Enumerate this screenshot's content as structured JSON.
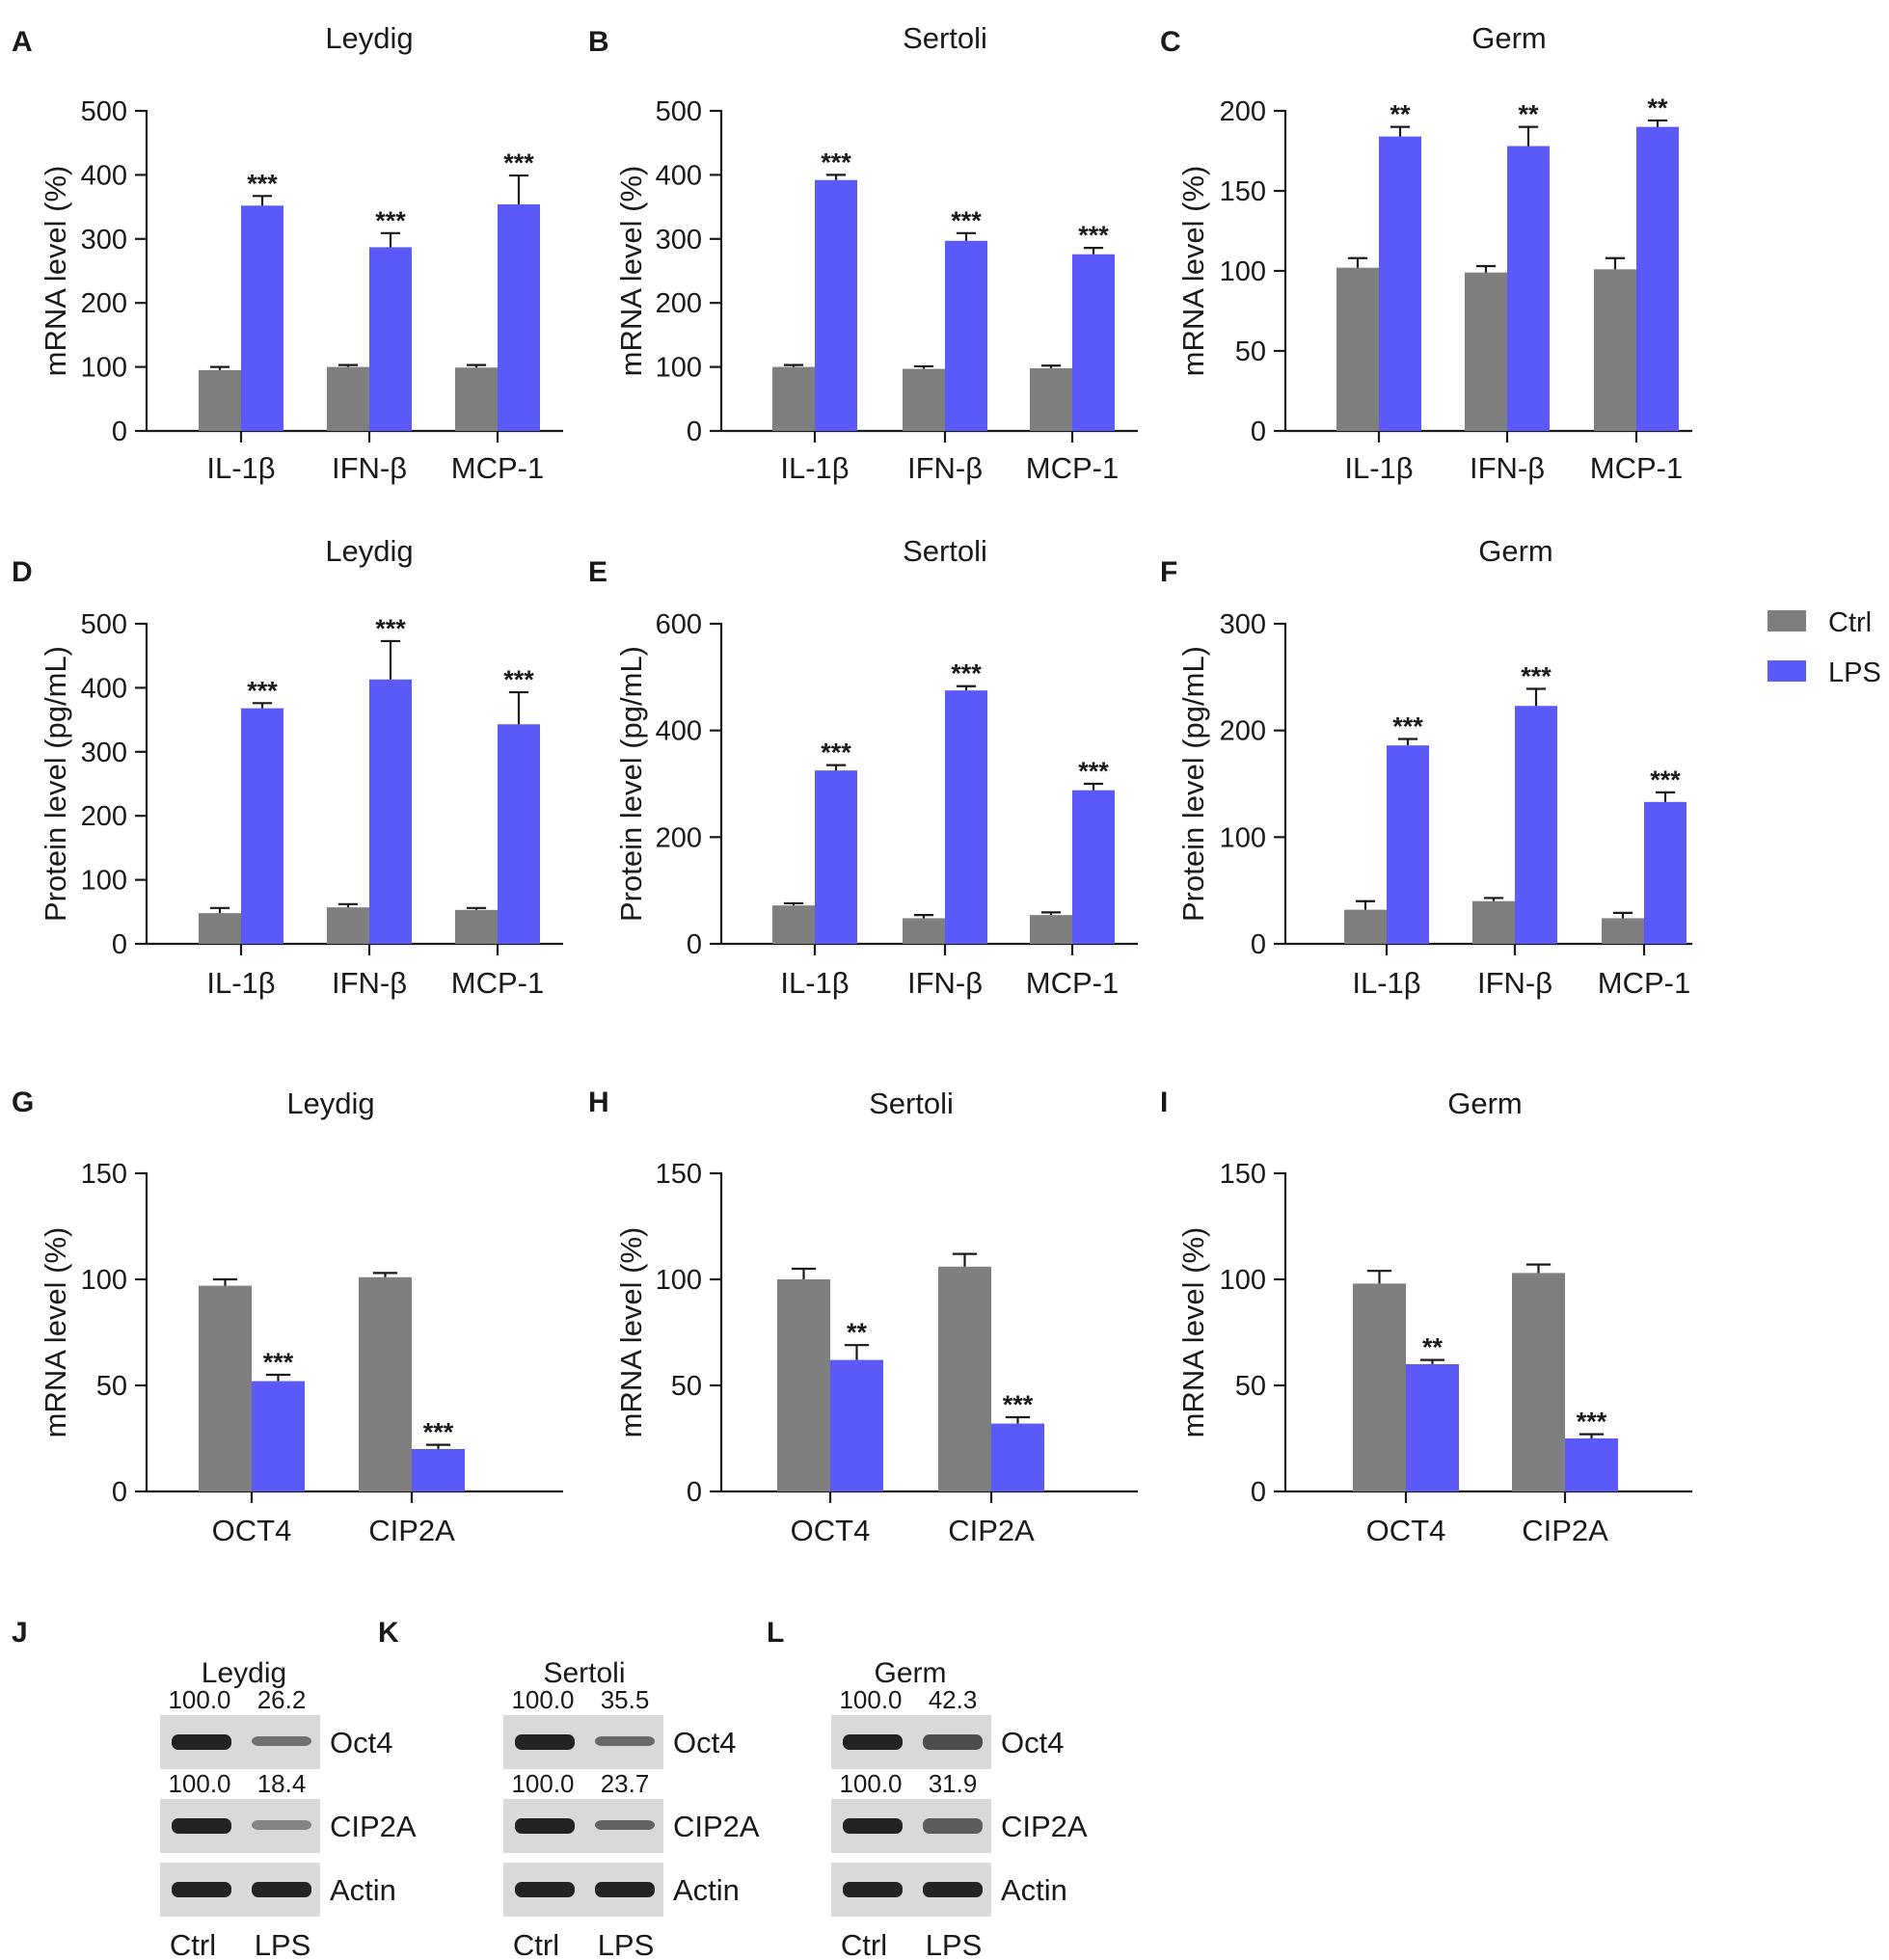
{
  "colors": {
    "ctrl": "#7f7f7f",
    "lps": "#5b59f8",
    "axis": "#1a1a1a"
  },
  "legend": {
    "entries": [
      {
        "name": "Ctrl",
        "color": "#7f7f7f"
      },
      {
        "name": "LPS",
        "color": "#5b59f8"
      }
    ]
  },
  "chart_data": [
    {
      "panel": "A",
      "type": "bar",
      "title": "Leydig",
      "ylabel": "mRNA level (%)",
      "ylim": [
        0,
        500
      ],
      "yticks": [
        0,
        100,
        200,
        300,
        400,
        500
      ],
      "categories": [
        "IL-1β",
        "IFN-β",
        "MCP-1"
      ],
      "series": [
        {
          "name": "Ctrl",
          "values": [
            95,
            100,
            99
          ],
          "errors": [
            5,
            3,
            4
          ]
        },
        {
          "name": "LPS",
          "values": [
            352,
            287,
            354
          ],
          "errors": [
            15,
            22,
            45
          ]
        }
      ],
      "significance": [
        "***",
        "***",
        "***"
      ]
    },
    {
      "panel": "B",
      "type": "bar",
      "title": "Sertoli",
      "ylabel": "mRNA level (%)",
      "ylim": [
        0,
        500
      ],
      "yticks": [
        0,
        100,
        200,
        300,
        400,
        500
      ],
      "categories": [
        "IL-1β",
        "IFN-β",
        "MCP-1"
      ],
      "series": [
        {
          "name": "Ctrl",
          "values": [
            100,
            97,
            98
          ],
          "errors": [
            3,
            4,
            4
          ]
        },
        {
          "name": "LPS",
          "values": [
            392,
            297,
            276
          ],
          "errors": [
            8,
            12,
            10
          ]
        }
      ],
      "significance": [
        "***",
        "***",
        "***"
      ]
    },
    {
      "panel": "C",
      "type": "bar",
      "title": "Germ",
      "ylabel": "mRNA level (%)",
      "ylim": [
        0,
        200
      ],
      "yticks": [
        0,
        50,
        100,
        150,
        200
      ],
      "categories": [
        "IL-1β",
        "IFN-β",
        "MCP-1"
      ],
      "series": [
        {
          "name": "Ctrl",
          "values": [
            102,
            99,
            101
          ],
          "errors": [
            6,
            4,
            7
          ]
        },
        {
          "name": "LPS",
          "values": [
            184,
            178,
            190
          ],
          "errors": [
            6,
            12,
            4
          ]
        }
      ],
      "significance": [
        "**",
        "**",
        "**"
      ]
    },
    {
      "panel": "D",
      "type": "bar",
      "title": "Leydig",
      "ylabel": "Protein level (pg/mL)",
      "ylim": [
        0,
        500
      ],
      "yticks": [
        0,
        100,
        200,
        300,
        400,
        500
      ],
      "categories": [
        "IL-1β",
        "IFN-β",
        "MCP-1"
      ],
      "series": [
        {
          "name": "Ctrl",
          "values": [
            48,
            57,
            53
          ],
          "errors": [
            8,
            5,
            3
          ]
        },
        {
          "name": "LPS",
          "values": [
            368,
            413,
            343
          ],
          "errors": [
            8,
            60,
            50
          ]
        }
      ],
      "significance": [
        "***",
        "***",
        "***"
      ]
    },
    {
      "panel": "E",
      "type": "bar",
      "title": "Sertoli",
      "ylabel": "Protein level (pg/mL)",
      "ylim": [
        0,
        600
      ],
      "yticks": [
        0,
        200,
        400,
        600
      ],
      "categories": [
        "IL-1β",
        "IFN-β",
        "MCP-1"
      ],
      "series": [
        {
          "name": "Ctrl",
          "values": [
            72,
            48,
            54
          ],
          "errors": [
            4,
            6,
            5
          ]
        },
        {
          "name": "LPS",
          "values": [
            325,
            475,
            288
          ],
          "errors": [
            10,
            8,
            12
          ]
        }
      ],
      "significance": [
        "***",
        "***",
        "***"
      ]
    },
    {
      "panel": "F",
      "type": "bar",
      "title": "Germ",
      "ylabel": "Protein level (pg/mL)",
      "ylim": [
        0,
        300
      ],
      "yticks": [
        0,
        100,
        200,
        300
      ],
      "categories": [
        "IL-1β",
        "IFN-β",
        "MCP-1"
      ],
      "series": [
        {
          "name": "Ctrl",
          "values": [
            32,
            40,
            24
          ],
          "errors": [
            8,
            3,
            5
          ]
        },
        {
          "name": "LPS",
          "values": [
            186,
            223,
            133
          ],
          "errors": [
            6,
            16,
            9
          ]
        }
      ],
      "significance": [
        "***",
        "***",
        "***"
      ]
    },
    {
      "panel": "G",
      "type": "bar",
      "title": "Leydig",
      "ylabel": "mRNA level (%)",
      "ylim": [
        0,
        150
      ],
      "yticks": [
        0,
        50,
        100,
        150
      ],
      "categories": [
        "OCT4",
        "CIP2A"
      ],
      "series": [
        {
          "name": "Ctrl",
          "values": [
            97,
            101
          ],
          "errors": [
            3,
            2
          ]
        },
        {
          "name": "LPS",
          "values": [
            52,
            20
          ],
          "errors": [
            3,
            2
          ]
        }
      ],
      "significance": [
        "***",
        "***"
      ]
    },
    {
      "panel": "H",
      "type": "bar",
      "title": "Sertoli",
      "ylabel": "mRNA level (%)",
      "ylim": [
        0,
        150
      ],
      "yticks": [
        0,
        50,
        100,
        150
      ],
      "categories": [
        "OCT4",
        "CIP2A"
      ],
      "series": [
        {
          "name": "Ctrl",
          "values": [
            100,
            106
          ],
          "errors": [
            5,
            6
          ]
        },
        {
          "name": "LPS",
          "values": [
            62,
            32
          ],
          "errors": [
            7,
            3
          ]
        }
      ],
      "significance": [
        "**",
        "***"
      ]
    },
    {
      "panel": "I",
      "type": "bar",
      "title": "Germ",
      "ylabel": "mRNA level (%)",
      "ylim": [
        0,
        150
      ],
      "yticks": [
        0,
        50,
        100,
        150
      ],
      "categories": [
        "OCT4",
        "CIP2A"
      ],
      "series": [
        {
          "name": "Ctrl",
          "values": [
            98,
            103
          ],
          "errors": [
            6,
            4
          ]
        },
        {
          "name": "LPS",
          "values": [
            60,
            25
          ],
          "errors": [
            2,
            2
          ]
        }
      ],
      "significance": [
        "**",
        "***"
      ]
    }
  ],
  "blots": [
    {
      "panel": "J",
      "title": "Leydig",
      "lanes": [
        "Ctrl",
        "LPS"
      ],
      "rows": [
        {
          "label": "Oct4",
          "values": [
            "100.0",
            "26.2"
          ],
          "intensity": [
            1.0,
            0.45
          ]
        },
        {
          "label": "CIP2A",
          "values": [
            "100.0",
            "18.4"
          ],
          "intensity": [
            1.0,
            0.3
          ]
        },
        {
          "label": "Actin",
          "intensity": [
            1.0,
            1.0
          ]
        }
      ]
    },
    {
      "panel": "K",
      "title": "Sertoli",
      "lanes": [
        "Ctrl",
        "LPS"
      ],
      "rows": [
        {
          "label": "Oct4",
          "values": [
            "100.0",
            "35.5"
          ],
          "intensity": [
            1.0,
            0.5
          ]
        },
        {
          "label": "CIP2A",
          "values": [
            "100.0",
            "23.7"
          ],
          "intensity": [
            1.0,
            0.55
          ]
        },
        {
          "label": "Actin",
          "intensity": [
            1.0,
            1.0
          ]
        }
      ]
    },
    {
      "panel": "L",
      "title": "Germ",
      "lanes": [
        "Ctrl",
        "LPS"
      ],
      "rows": [
        {
          "label": "Oct4",
          "values": [
            "100.0",
            "42.3"
          ],
          "intensity": [
            1.0,
            0.7
          ]
        },
        {
          "label": "CIP2A",
          "values": [
            "100.0",
            "31.9"
          ],
          "intensity": [
            1.0,
            0.6
          ]
        },
        {
          "label": "Actin",
          "intensity": [
            1.0,
            1.0
          ]
        }
      ]
    }
  ]
}
